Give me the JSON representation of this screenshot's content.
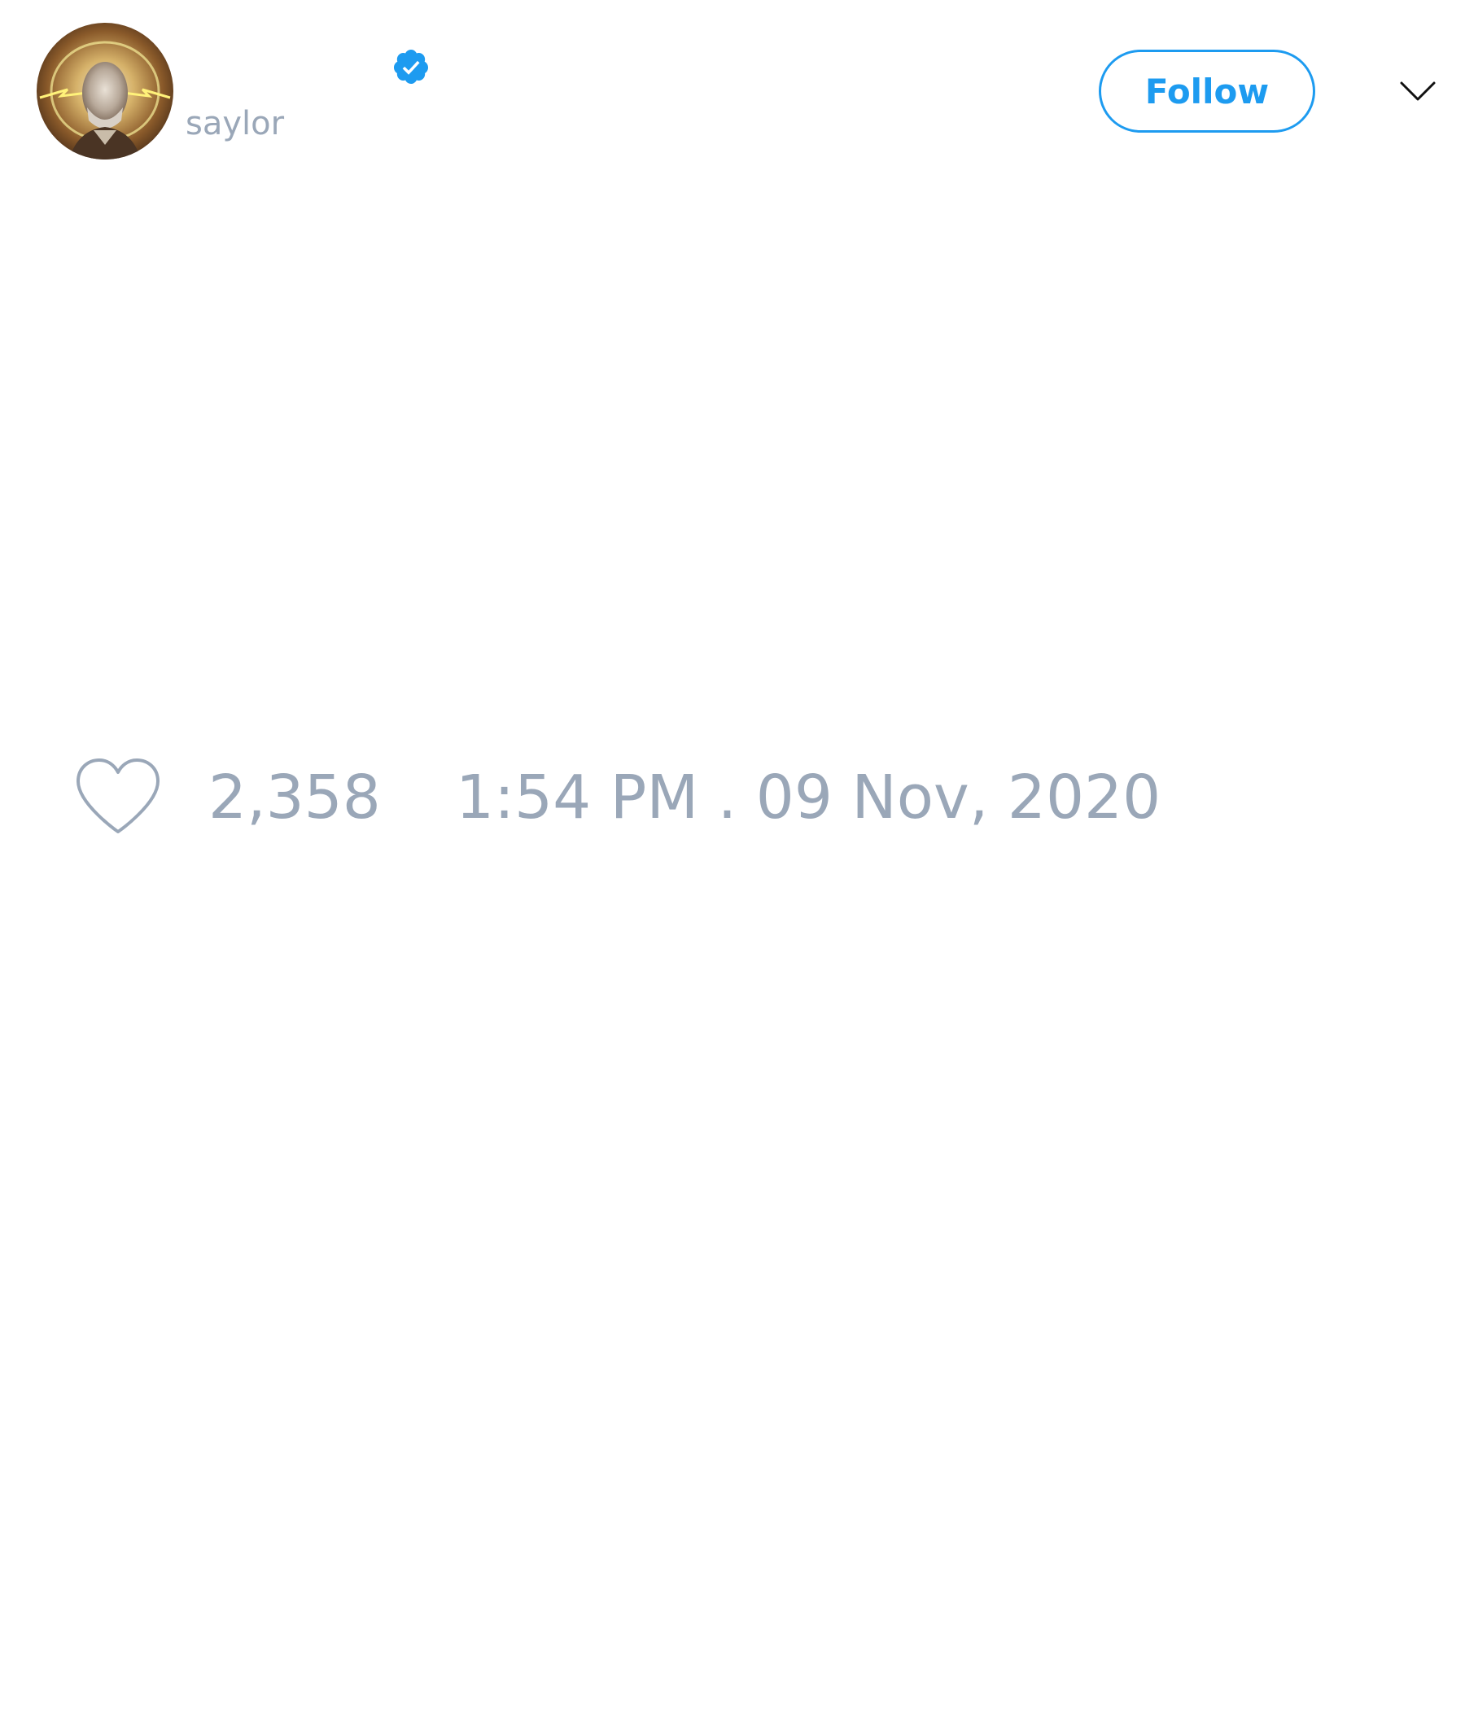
{
  "tweet": {
    "author": {
      "handle": "saylor",
      "verified": true,
      "avatar": "avatar-photo"
    },
    "follow_label": "Follow",
    "menu_icon": "chevron-down-icon",
    "like_icon": "heart-icon",
    "like_count": "2,358",
    "timestamp": "1:54 PM . 09 Nov, 2020"
  },
  "colors": {
    "accent": "#1d9bf0",
    "muted_text": "#9aa7b8",
    "background": "#ffffff"
  }
}
